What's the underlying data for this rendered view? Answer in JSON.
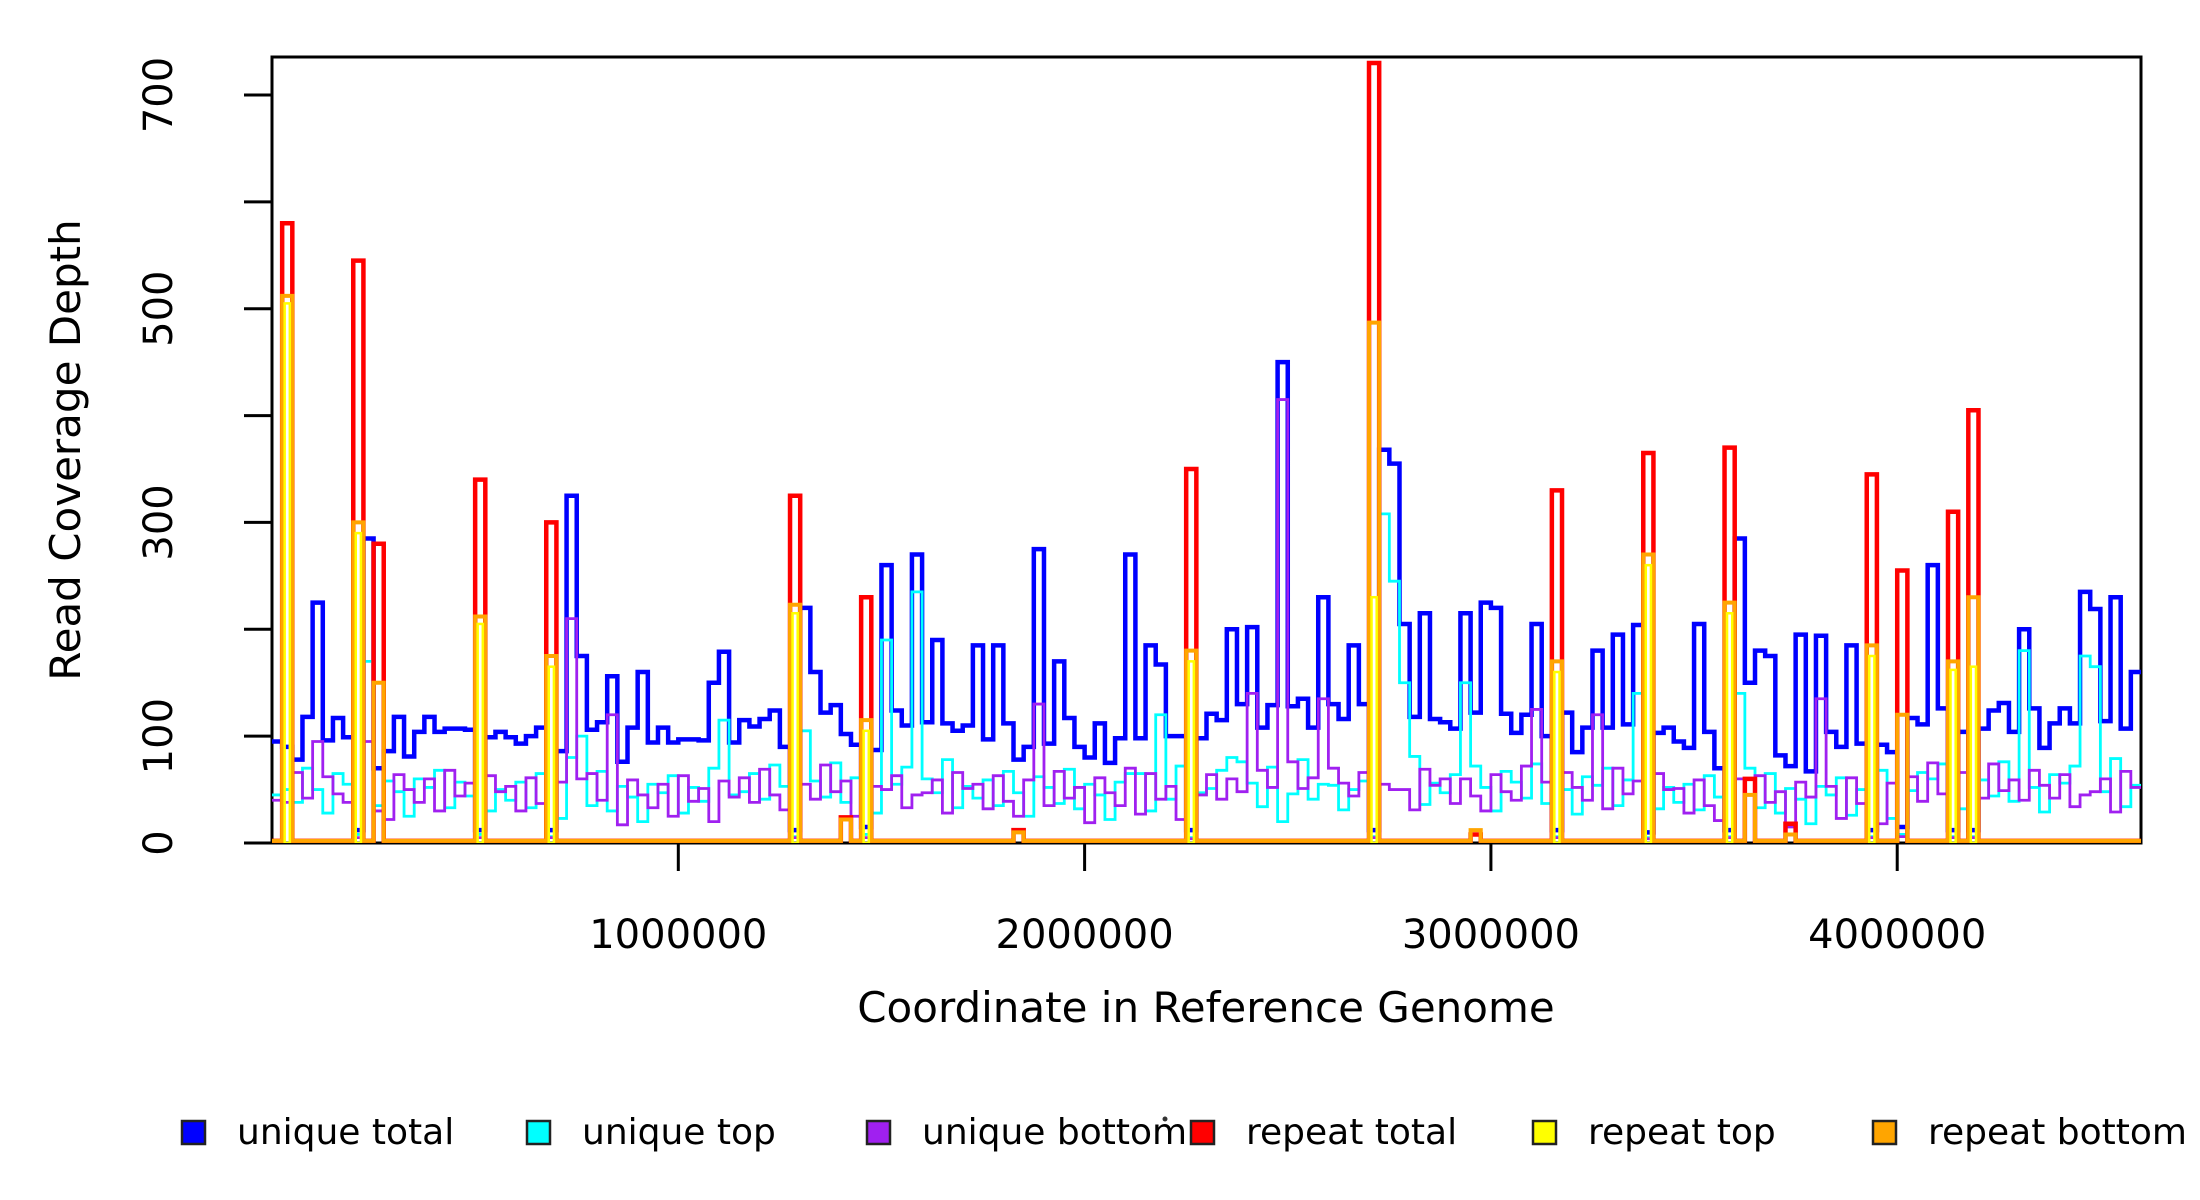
{
  "figure": {
    "title": "",
    "x_axis_title": "Coordinate in Reference Genome",
    "y_axis_title": "Read Coverage Depth"
  },
  "chart_data": {
    "type": "line",
    "subtype": "step-coverage",
    "title": "",
    "xlabel": "Coordinate in Reference Genome",
    "ylabel": "Read Coverage Depth",
    "xlim": [
      0,
      4600000
    ],
    "ylim": [
      0,
      735
    ],
    "grid": false,
    "legend_position": "bottom",
    "x_bin_size": 25000,
    "n_bins": 184,
    "x_ticks": [
      1000000,
      2000000,
      3000000,
      4000000
    ],
    "x_tick_labels": [
      "1000000",
      "2000000",
      "3000000",
      "4000000"
    ],
    "y_ticks": [
      0,
      100,
      200,
      300,
      400,
      500,
      600,
      700
    ],
    "y_tick_labels_shown": {
      "0": "0",
      "100": "100",
      "300": "300",
      "500": "500",
      "700": "700"
    },
    "colors": {
      "unique_total": "#0000FF",
      "unique_top": "#00FFFF",
      "unique_bottom": "#A020F0",
      "repeat_total": "#FF0000",
      "repeat_top": "#FFFF00",
      "repeat_bottom": "#FFA500",
      "axis": "#000000"
    },
    "legend": [
      {
        "label": "unique total",
        "color": "#0000FF"
      },
      {
        "label": "unique top",
        "color": "#00FFFF"
      },
      {
        "label": "unique bottom",
        "color": "#A020F0"
      },
      {
        "label": "repeat total",
        "color": "#FF0000"
      },
      {
        "label": "repeat top",
        "color": "#FFFF00"
      },
      {
        "label": "repeat bottom",
        "color": "#FFA500"
      }
    ],
    "series": [
      {
        "name": "unique total",
        "color": "#0000FF",
        "lwd": 4.5,
        "render": "step",
        "values": [
          95,
          90,
          78,
          118,
          225,
          96,
          117,
          99,
          12,
          285,
          70,
          86,
          118,
          81,
          104,
          118,
          104,
          107,
          107,
          106,
          12,
          99,
          104,
          99,
          93,
          100,
          108,
          12,
          86,
          325,
          175,
          106,
          113,
          156,
          76,
          108,
          160,
          94,
          108,
          94,
          97,
          97,
          96,
          150,
          179,
          94,
          115,
          109,
          116,
          124,
          90,
          12,
          220,
          160,
          122,
          129,
          102,
          92,
          15,
          87,
          260,
          124,
          110,
          270,
          113,
          190,
          112,
          105,
          110,
          185,
          97,
          185,
          112,
          78,
          90,
          275,
          93,
          170,
          117,
          90,
          80,
          112,
          75,
          98,
          270,
          98,
          185,
          167,
          100,
          100,
          12,
          98,
          121,
          115,
          200,
          130,
          202,
          108,
          129,
          450,
          128,
          135,
          108,
          230,
          130,
          116,
          185,
          130,
          12,
          368,
          355,
          205,
          118,
          215,
          116,
          113,
          107,
          215,
          122,
          225,
          220,
          121,
          103,
          120,
          205,
          100,
          12,
          122,
          85,
          108,
          180,
          108,
          195,
          111,
          204,
          10,
          103,
          108,
          95,
          89,
          205,
          104,
          70,
          12,
          285,
          150,
          180,
          175,
          82,
          72,
          195,
          67,
          194,
          104,
          90,
          185,
          93,
          12,
          92,
          85,
          15,
          117,
          111,
          260,
          126,
          12,
          104,
          12,
          107,
          124,
          131,
          104,
          200,
          126,
          89,
          112,
          126,
          112,
          235,
          219,
          114,
          230,
          107,
          160
        ]
      },
      {
        "name": "unique top",
        "color": "#00FFFF",
        "lwd": 2.8,
        "render": "step",
        "values": [
          45,
          50,
          38,
          70,
          50,
          28,
          65,
          55,
          8,
          170,
          35,
          58,
          48,
          25,
          60,
          52,
          68,
          33,
          57,
          44,
          8,
          30,
          50,
          40,
          57,
          33,
          65,
          6,
          23,
          80,
          100,
          35,
          67,
          30,
          53,
          43,
          20,
          55,
          47,
          63,
          28,
          52,
          39,
          70,
          115,
          45,
          48,
          65,
          41,
          73,
          53,
          6,
          105,
          58,
          43,
          75,
          38,
          61,
          8,
          28,
          190,
          55,
          71,
          235,
          60,
          47,
          78,
          33,
          53,
          42,
          59,
          35,
          67,
          47,
          25,
          62,
          52,
          37,
          69,
          32,
          55,
          45,
          22,
          57,
          65,
          65,
          30,
          120,
          41,
          72,
          5,
          47,
          51,
          68,
          80,
          76,
          56,
          34,
          71,
          20,
          46,
          78,
          41,
          55,
          54,
          31,
          50,
          58,
          6,
          308,
          245,
          150,
          81,
          36,
          56,
          47,
          64,
          150,
          72,
          52,
          30,
          67,
          57,
          42,
          74,
          37,
          6,
          50,
          27,
          62,
          54,
          70,
          35,
          59,
          140,
          5,
          32,
          52,
          38,
          55,
          31,
          63,
          43,
          6,
          140,
          70,
          33,
          65,
          28,
          51,
          41,
          18,
          53,
          45,
          61,
          26,
          50,
          6,
          68,
          23,
          8,
          49,
          66,
          60,
          74,
          6,
          32,
          6,
          59,
          44,
          76,
          39,
          180,
          52,
          29,
          64,
          56,
          72,
          175,
          165,
          48,
          79,
          34,
          54
        ]
      },
      {
        "name": "unique bottom",
        "color": "#A020F0",
        "lwd": 2.8,
        "render": "step",
        "values": [
          40,
          38,
          66,
          42,
          95,
          62,
          46,
          38,
          5,
          95,
          30,
          22,
          64,
          50,
          38,
          60,
          30,
          68,
          44,
          56,
          5,
          63,
          48,
          53,
          30,
          61,
          37,
          5,
          57,
          210,
          60,
          65,
          40,
          120,
          17,
          59,
          45,
          33,
          55,
          25,
          63,
          39,
          51,
          20,
          58,
          43,
          61,
          38,
          69,
          45,
          31,
          5,
          55,
          41,
          73,
          48,
          58,
          25,
          5,
          53,
          50,
          63,
          33,
          45,
          47,
          59,
          28,
          66,
          51,
          55,
          32,
          63,
          39,
          25,
          59,
          130,
          35,
          67,
          42,
          52,
          19,
          61,
          47,
          35,
          70,
          27,
          65,
          41,
          53,
          22,
          4,
          45,
          64,
          41,
          60,
          48,
          140,
          68,
          52,
          415,
          76,
          51,
          61,
          135,
          70,
          56,
          44,
          66,
          5,
          55,
          50,
          50,
          31,
          69,
          54,
          60,
          37,
          60,
          44,
          30,
          64,
          48,
          40,
          72,
          125,
          57,
          5,
          66,
          52,
          40,
          120,
          32,
          70,
          46,
          58,
          4,
          65,
          50,
          51,
          28,
          59,
          35,
          21,
          5,
          60,
          60,
          63,
          38,
          48,
          15,
          57,
          43,
          135,
          53,
          23,
          61,
          37,
          5,
          18,
          56,
          6,
          62,
          39,
          75,
          46,
          5,
          66,
          5,
          42,
          74,
          49,
          59,
          40,
          68,
          54,
          42,
          64,
          34,
          45,
          48,
          60,
          29,
          67,
          52
        ]
      },
      {
        "name": "repeat total",
        "color": "#FF0000",
        "lwd": 4.5,
        "render": "step",
        "baseline": 2,
        "spikes": {
          "1": 580,
          "8": 545,
          "10": 280,
          "20": 340,
          "27": 300,
          "51": 325,
          "56": 24,
          "58": 230,
          "73": 12,
          "90": 350,
          "108": 730,
          "118": 8,
          "126": 330,
          "135": 365,
          "143": 370,
          "145": 60,
          "149": 18,
          "157": 345,
          "160": 255,
          "165": 310,
          "167": 405
        }
      },
      {
        "name": "repeat top",
        "color": "#FFFF00",
        "lwd": 2.5,
        "render": "inset-column",
        "baseline": 0,
        "spikes": {
          "1": 505,
          "8": 290,
          "20": 205,
          "27": 165,
          "51": 215,
          "58": 105,
          "90": 170,
          "108": 230,
          "126": 160,
          "135": 260,
          "143": 215,
          "157": 175,
          "165": 162,
          "167": 165
        }
      },
      {
        "name": "repeat bottom",
        "color": "#FFA500",
        "lwd": 4,
        "render": "step",
        "baseline": 2,
        "spikes": {
          "1": 512,
          "8": 300,
          "10": 150,
          "20": 212,
          "27": 175,
          "51": 223,
          "56": 22,
          "58": 115,
          "73": 10,
          "90": 180,
          "108": 487,
          "118": 12,
          "126": 170,
          "135": 270,
          "143": 225,
          "145": 45,
          "149": 8,
          "157": 185,
          "160": 120,
          "165": 170,
          "167": 230
        }
      }
    ]
  }
}
